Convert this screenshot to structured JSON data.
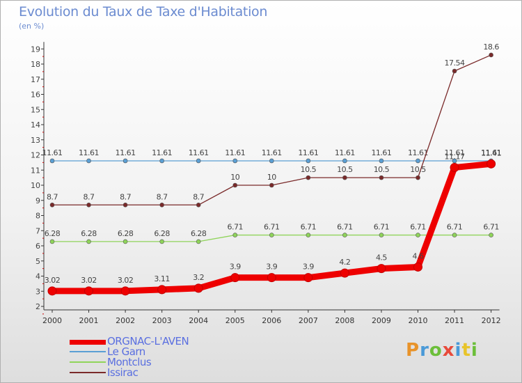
{
  "chart_data": {
    "type": "line",
    "title": "Evolution du Taux de Taxe d'Habitation",
    "subtitle": "(en %)",
    "xlabel": "",
    "ylabel": "",
    "ylim": [
      2,
      19
    ],
    "yticks": [
      "2",
      "3",
      "4",
      "5",
      "6",
      "7",
      "8",
      "9",
      "10",
      "11",
      "12",
      "13",
      "14",
      "15",
      "16",
      "17",
      "18",
      "19"
    ],
    "categories": [
      "2000",
      "2001",
      "2002",
      "2003",
      "2004",
      "2005",
      "2006",
      "2007",
      "2008",
      "2009",
      "2010",
      "2011",
      "2012"
    ],
    "series": [
      {
        "name": "ORGNAC-L'AVEN",
        "color": "#ee0000",
        "values": [
          3.02,
          3.02,
          3.02,
          3.11,
          3.2,
          3.9,
          3.9,
          3.9,
          4.2,
          4.5,
          4.6,
          11.17,
          11.41
        ],
        "labels": [
          "3.02",
          "3.02",
          "3.02",
          "3.11",
          "3.2",
          "3.9",
          "3.9",
          "3.9",
          "4.2",
          "4.5",
          "4.6",
          "11.17",
          "11.41"
        ]
      },
      {
        "name": "Le Garn",
        "color": "#5a9fd4",
        "values": [
          11.61,
          11.61,
          11.61,
          11.61,
          11.61,
          11.61,
          11.61,
          11.61,
          11.61,
          11.61,
          11.61,
          11.61,
          11.61
        ],
        "labels": [
          "11.61",
          "11.61",
          "11.61",
          "11.61",
          "11.61",
          "11.61",
          "11.61",
          "11.61",
          "11.61",
          "11.61",
          "11.61",
          "11.61",
          "11.61"
        ]
      },
      {
        "name": "Montclus",
        "color": "#8fd45a",
        "values": [
          6.28,
          6.28,
          6.28,
          6.28,
          6.28,
          6.71,
          6.71,
          6.71,
          6.71,
          6.71,
          6.71,
          6.71,
          6.71
        ],
        "labels": [
          "6.28",
          "6.28",
          "6.28",
          "6.28",
          "6.28",
          "6.71",
          "6.71",
          "6.71",
          "6.71",
          "6.71",
          "6.71",
          "6.71",
          "6.71"
        ]
      },
      {
        "name": "Issirac",
        "color": "#7a2a2a",
        "values": [
          8.7,
          8.7,
          8.7,
          8.7,
          8.7,
          10,
          10,
          10.5,
          10.5,
          10.5,
          10.5,
          17.54,
          18.6
        ],
        "labels": [
          "8.7",
          "8.7",
          "8.7",
          "8.7",
          "8.7",
          "10",
          "10",
          "10.5",
          "10.5",
          "10.5",
          "10.5",
          "17.54",
          "18.6"
        ]
      }
    ]
  },
  "brand": {
    "logo_text": "Proxiti",
    "logo_letters": [
      "P",
      "r",
      "o",
      "x",
      "i",
      "t",
      "i"
    ]
  }
}
